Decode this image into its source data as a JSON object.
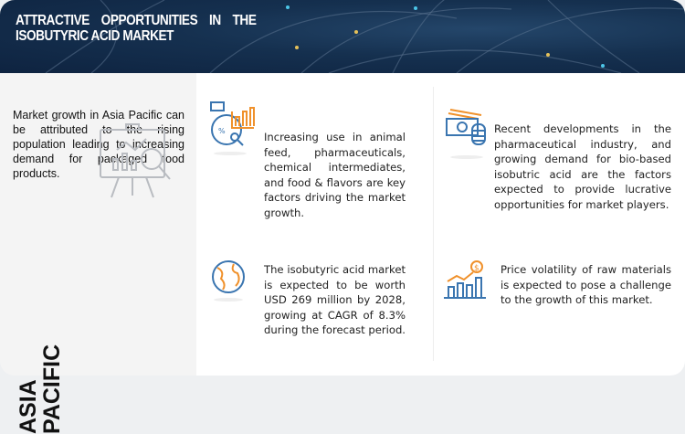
{
  "header": {
    "title_line1": [
      "ATTRACTIVE",
      "OPPORTUNITIES",
      "IN",
      "THE"
    ],
    "title_line2": "ISOBUTYRIC ACID MARKET"
  },
  "left": {
    "text": "Market growth in Asia Pacific can be attributed to the rising population leading to increasing demand for packaged food products.",
    "region_line1": "ASIA",
    "region_line2": "PACIFIC"
  },
  "cards": [
    {
      "icon": "analytics-chart-icon",
      "text": "Increasing use in animal feed, pharmaceuticals, chemical intermediates, and food & flavors are key factors driving the market growth."
    },
    {
      "icon": "money-coins-icon",
      "text": "Recent developments in the pharmaceutical industry, and growing demand for bio-based isobutric acid are the factors expected to provide lucrative opportunities for market players."
    },
    {
      "icon": "globe-icon",
      "text": "The isobutyric acid market is expected to be worth USD 269 million by 2028, growing at CAGR of 8.3% during the forecast period."
    },
    {
      "icon": "dollar-growth-chart-icon",
      "text": "Price volatility of raw materials is expected to pose a challenge to the growth of this market."
    }
  ],
  "colors": {
    "header": "#15304f",
    "icon_blue": "#3a75b0",
    "icon_orange": "#f0912b",
    "panel": "#f4f4f4"
  }
}
